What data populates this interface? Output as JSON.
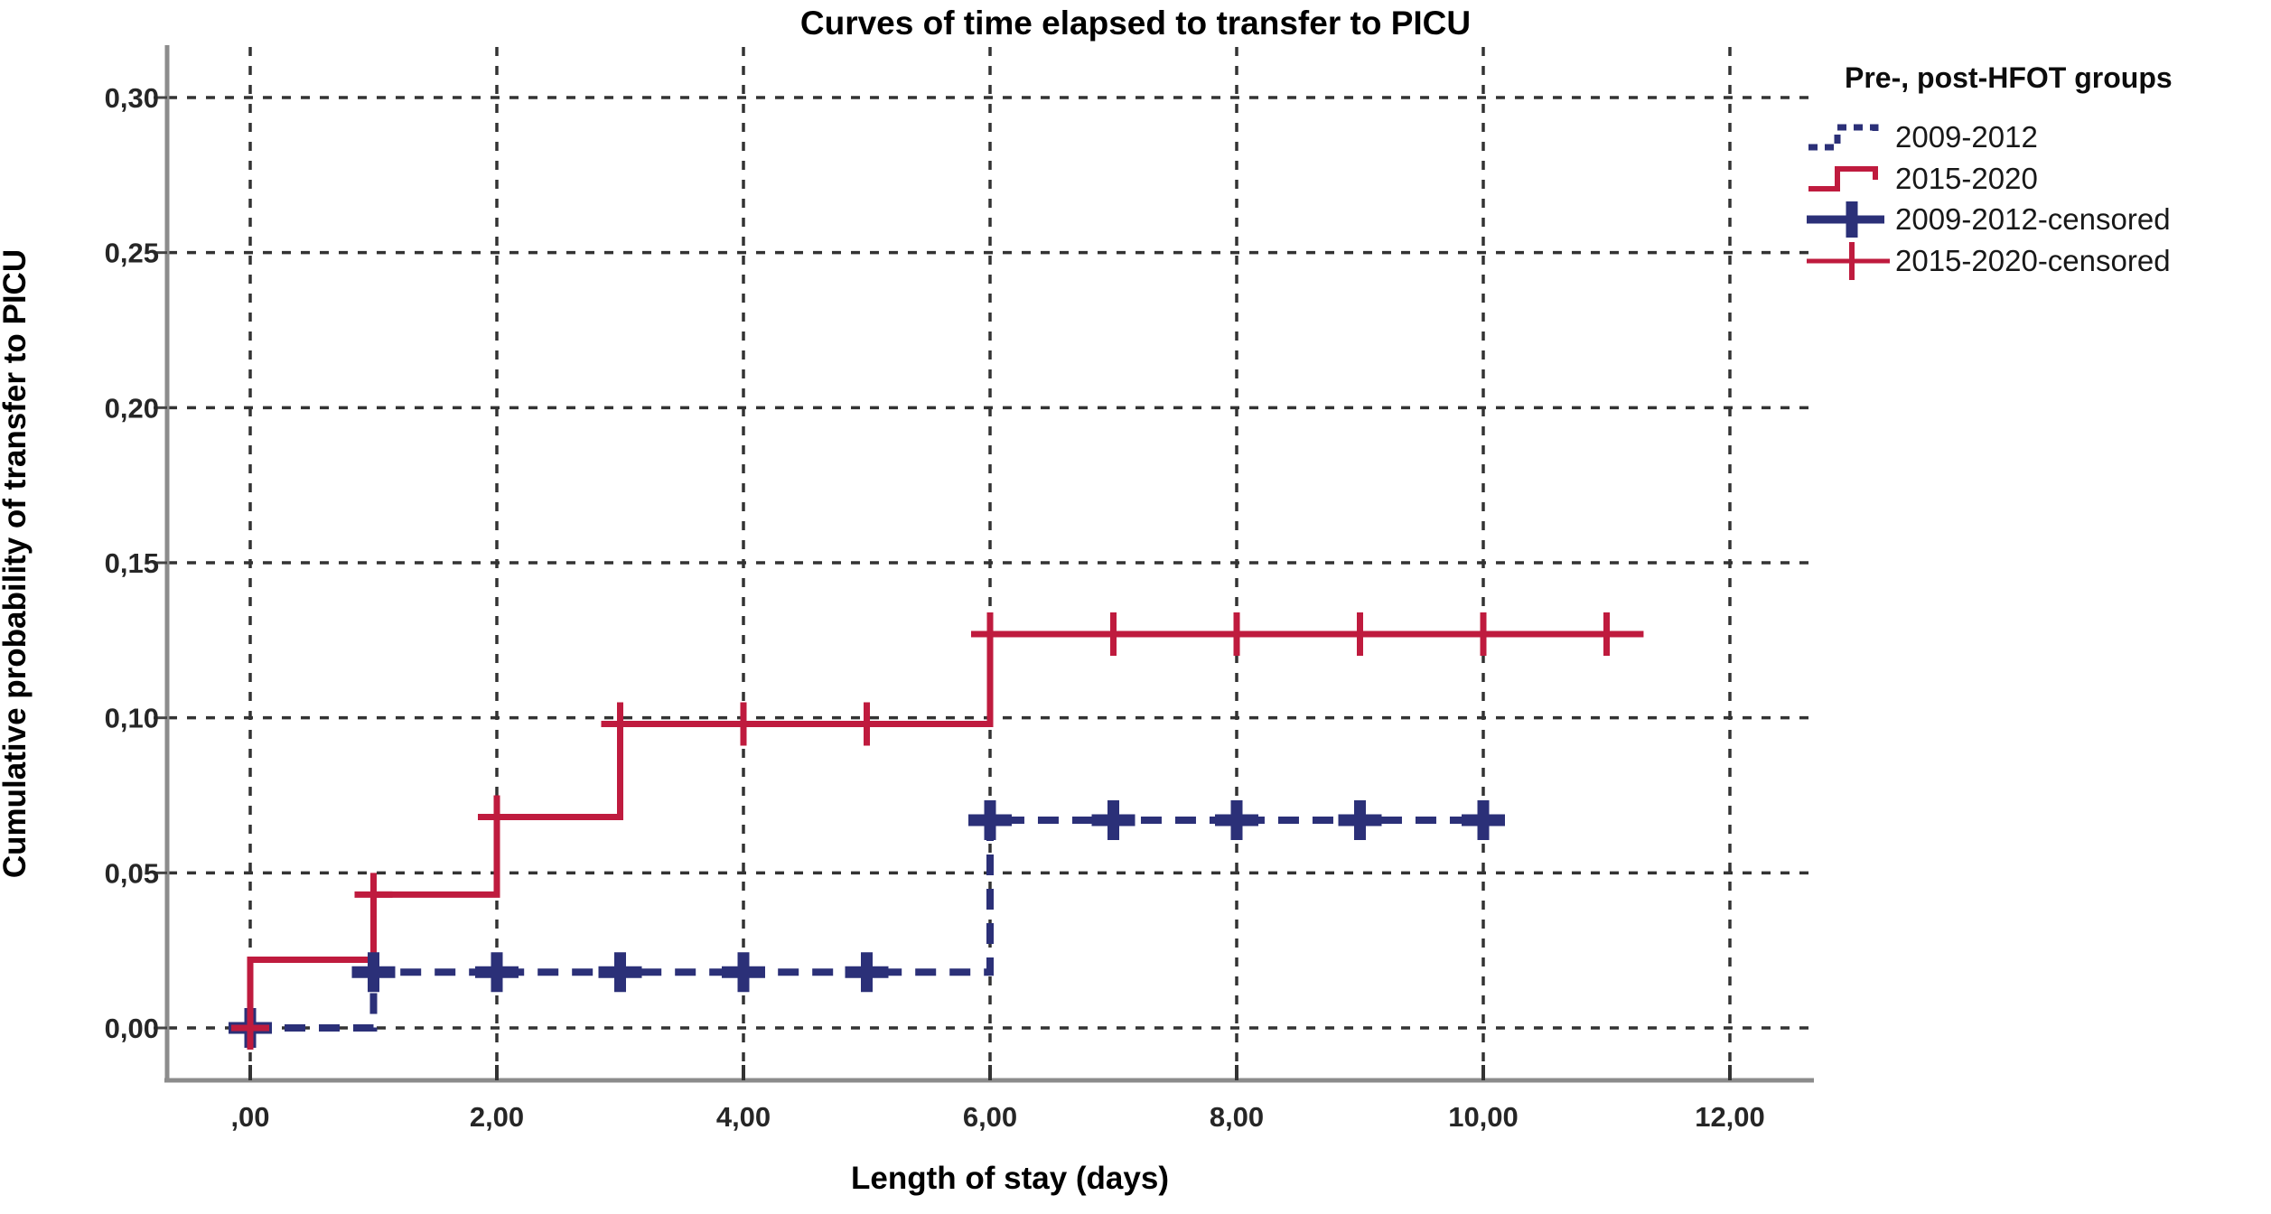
{
  "title": "Curves of time elapsed to transfer to PICU",
  "axes": {
    "x_label": "Length of stay (days)",
    "y_label": "Cumulative probability of transfer to PICU",
    "x_ticks": [
      ",00",
      "2,00",
      "4,00",
      "6,00",
      "8,00",
      "10,00",
      "12,00"
    ],
    "x_tick_values": [
      0,
      2,
      4,
      6,
      8,
      10,
      12
    ],
    "y_ticks": [
      "0,00",
      "0,05",
      "0,10",
      "0,15",
      "0,20",
      "0,25",
      "0,30"
    ],
    "y_tick_values": [
      0,
      0.05,
      0.1,
      0.15,
      0.2,
      0.25,
      0.3
    ],
    "grid": true,
    "decimal_separator": ","
  },
  "legend": {
    "title": "Pre-, post-HFOT groups",
    "position": "top-right",
    "entries": [
      {
        "label": "2009-2012",
        "swatch": "step-dashed",
        "color": "#2b3078"
      },
      {
        "label": "2015-2020",
        "swatch": "step-solid",
        "color": "#bf1b3e"
      },
      {
        "label": "2009-2012-censored",
        "swatch": "plus-thick",
        "color": "#2b3078"
      },
      {
        "label": "2015-2020-censored",
        "swatch": "plus-thin",
        "color": "#bf1b3e"
      }
    ]
  },
  "chart_data": {
    "type": "line",
    "subtype": "kaplan-meier-cumulative-step",
    "title": "Curves of time elapsed to transfer to PICU",
    "xlabel": "Length of stay (days)",
    "ylabel": "Cumulative probability of transfer to PICU",
    "xlim": [
      0,
      12
    ],
    "ylim": [
      0,
      0.3
    ],
    "legend_position": "top-right",
    "grid": "dashed",
    "series": [
      {
        "name": "2009-2012",
        "color": "#2b3078",
        "line_style": "dashed",
        "start": {
          "x": 0,
          "y": 0
        },
        "steps": [
          {
            "x": 1,
            "y": 0.018
          },
          {
            "x": 6,
            "y": 0.067
          }
        ],
        "end_x": 10.15,
        "censored_marks": [
          {
            "x": 0,
            "y": 0
          },
          {
            "x": 1,
            "y": 0.018
          },
          {
            "x": 2,
            "y": 0.018
          },
          {
            "x": 3,
            "y": 0.018
          },
          {
            "x": 4,
            "y": 0.018
          },
          {
            "x": 5,
            "y": 0.018
          },
          {
            "x": 6,
            "y": 0.067
          },
          {
            "x": 7,
            "y": 0.067
          },
          {
            "x": 8,
            "y": 0.067
          },
          {
            "x": 9,
            "y": 0.067
          },
          {
            "x": 10,
            "y": 0.067
          }
        ]
      },
      {
        "name": "2015-2020",
        "color": "#bf1b3e",
        "line_style": "solid",
        "start": {
          "x": 0,
          "y": 0
        },
        "steps": [
          {
            "x": 0,
            "y": 0.022
          },
          {
            "x": 1,
            "y": 0.043
          },
          {
            "x": 2,
            "y": 0.068
          },
          {
            "x": 3,
            "y": 0.098
          },
          {
            "x": 6,
            "y": 0.127
          }
        ],
        "end_x": 11.3,
        "censored_marks": [
          {
            "x": 0,
            "y": 0
          },
          {
            "x": 1,
            "y": 0.043
          },
          {
            "x": 2,
            "y": 0.068
          },
          {
            "x": 3,
            "y": 0.098
          },
          {
            "x": 4,
            "y": 0.098
          },
          {
            "x": 5,
            "y": 0.098
          },
          {
            "x": 6,
            "y": 0.127
          },
          {
            "x": 7,
            "y": 0.127
          },
          {
            "x": 8,
            "y": 0.127
          },
          {
            "x": 9,
            "y": 0.127
          },
          {
            "x": 10,
            "y": 0.127
          },
          {
            "x": 11,
            "y": 0.127
          }
        ]
      }
    ]
  }
}
